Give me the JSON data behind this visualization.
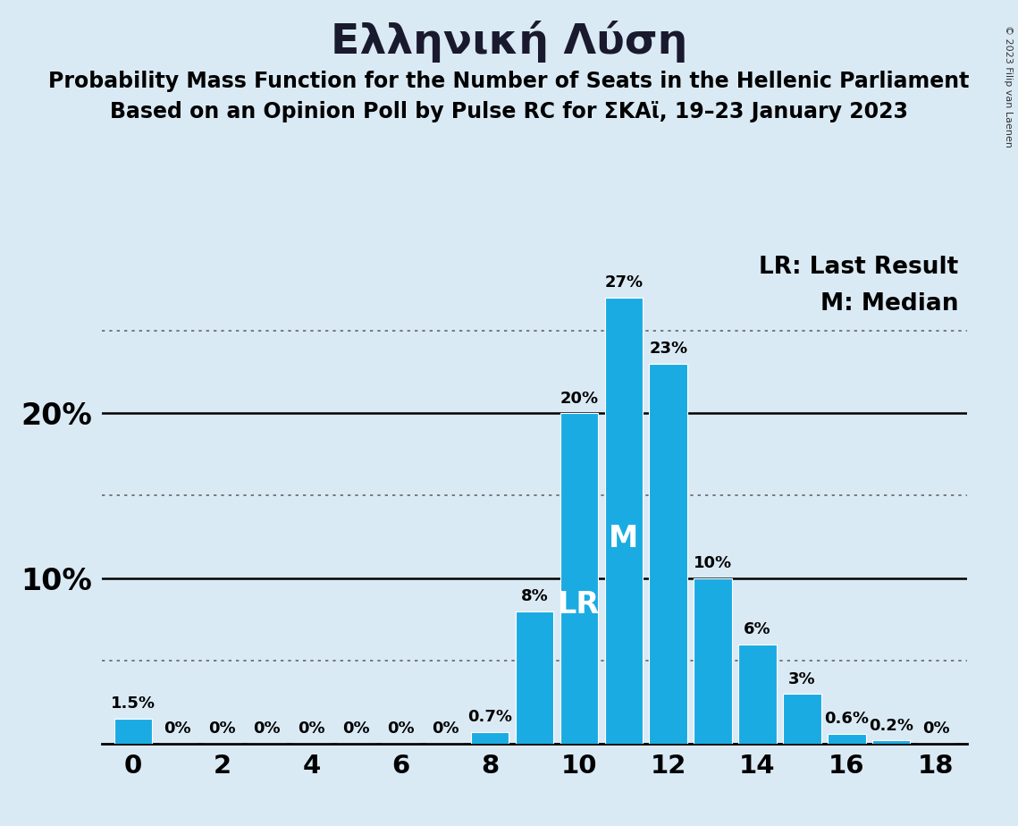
{
  "title": "Ελληνική Λύση",
  "subtitle1": "Probability Mass Function for the Number of Seats in the Hellenic Parliament",
  "subtitle2": "Based on an Opinion Poll by Pulse RC for ΣΚΑϊ, 19–23 January 2023",
  "categories": [
    0,
    1,
    2,
    3,
    4,
    5,
    6,
    7,
    8,
    9,
    10,
    11,
    12,
    13,
    14,
    15,
    16,
    17,
    18
  ],
  "values": [
    1.5,
    0,
    0,
    0,
    0,
    0,
    0,
    0,
    0.7,
    8,
    20,
    27,
    23,
    10,
    6,
    3,
    0.6,
    0.2,
    0
  ],
  "bar_color": "#1AABE3",
  "background_color": "#daeaf5",
  "LR_seat": 10,
  "M_seat": 11,
  "dotted_lines": [
    5,
    15,
    25
  ],
  "solid_lines": [
    10,
    20
  ],
  "legend_text1": "LR: Last Result",
  "legend_text2": "M: Median",
  "copyright_text": "© 2023 Filip van Laenen",
  "bar_label_fontsize": 13,
  "title_fontsize": 34,
  "subtitle_fontsize": 17,
  "axis_tick_fontsize": 21,
  "ylabel_fontsize": 24,
  "legend_fontsize": 19,
  "lr_m_fontsize": 24,
  "bar_width": 0.85,
  "ylim_max": 30
}
